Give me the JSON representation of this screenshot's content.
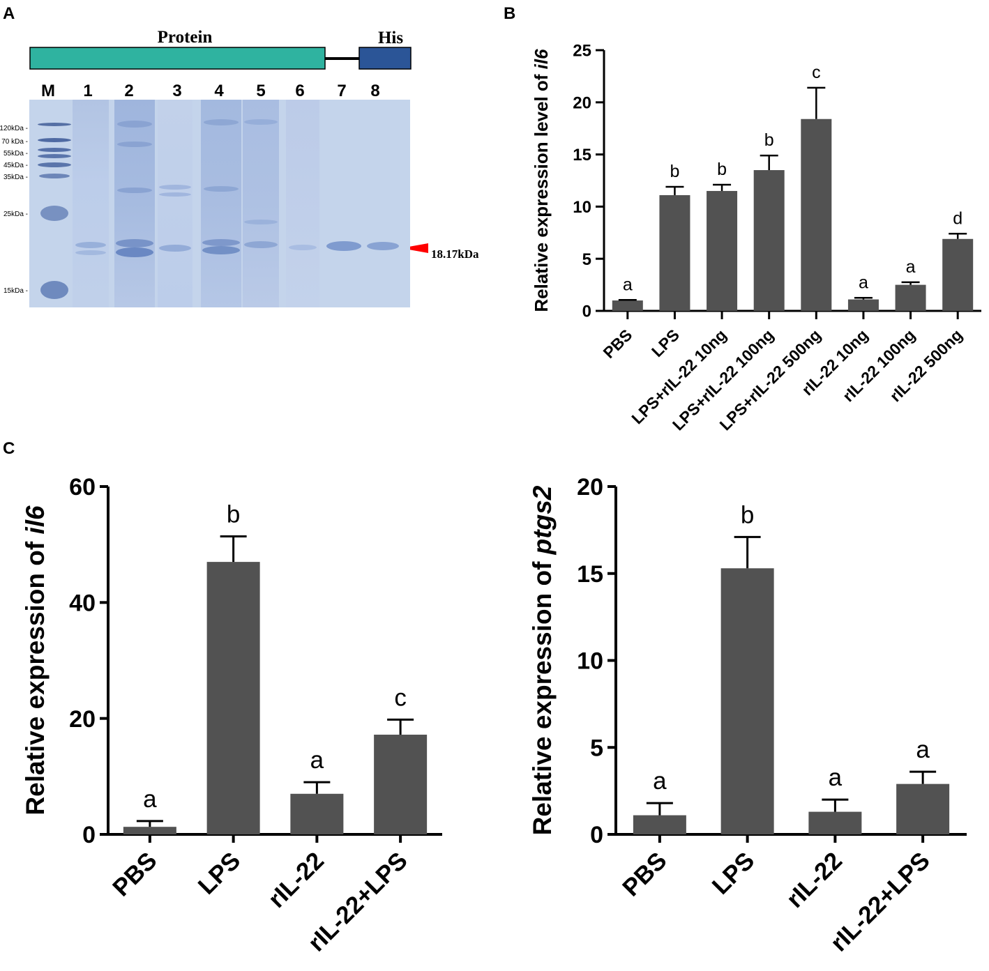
{
  "panels": {
    "A": "A",
    "B": "B",
    "C": "C"
  },
  "gel": {
    "construct": {
      "protein_label": "Protein",
      "tag_label": "His",
      "protein_color": "#2fb3a0",
      "tag_color": "#2b5597"
    },
    "lanes": [
      "M",
      "1",
      "2",
      "3",
      "4",
      "5",
      "6",
      "7",
      "8"
    ],
    "markers": [
      "120kDa",
      "70 kDa",
      "55kDa",
      "45kDa",
      "35kDa",
      "25kDa",
      "15kDa"
    ],
    "arrow_label": "18.17kDa",
    "arrow_color": "#ff0000"
  },
  "chart_data": [
    {
      "type": "bar",
      "panel": "B",
      "title": "",
      "xlabel": "",
      "ylabel_prefix": "Relative expression level of ",
      "ylabel_gene": "il6",
      "ylim": [
        0,
        25
      ],
      "yticks": [
        0,
        5,
        10,
        15,
        20,
        25
      ],
      "categories": [
        "PBS",
        "LPS",
        "LPS+rIL-22 10ng",
        "LPS+rIL-22 100ng",
        "LPS+rIL-22 500ng",
        "rIL-22 10ng",
        "rIL-22 100ng",
        "rIL-22 500ng"
      ],
      "values": [
        1.0,
        11.1,
        11.5,
        13.5,
        18.4,
        1.1,
        2.5,
        6.9
      ],
      "errors": [
        0.05,
        0.8,
        0.6,
        1.4,
        3.0,
        0.15,
        0.25,
        0.5
      ],
      "letters": [
        "a",
        "b",
        "b",
        "b",
        "c",
        "a",
        "a",
        "d"
      ],
      "bar_color": "#525252"
    },
    {
      "type": "bar",
      "panel": "C-left",
      "title": "",
      "xlabel": "",
      "ylabel_prefix": "Relative expression of ",
      "ylabel_gene": "il6",
      "ylim": [
        0,
        60
      ],
      "yticks": [
        0,
        20,
        40,
        60
      ],
      "categories": [
        "PBS",
        "LPS",
        "rIL-22",
        "rIL-22+LPS"
      ],
      "values": [
        1.3,
        47.0,
        7.0,
        17.2
      ],
      "errors": [
        1.0,
        4.4,
        2.0,
        2.6
      ],
      "letters": [
        "a",
        "b",
        "a",
        "c"
      ],
      "bar_color": "#525252"
    },
    {
      "type": "bar",
      "panel": "C-right",
      "title": "",
      "xlabel": "",
      "ylabel_prefix": "Relative expression of ",
      "ylabel_gene": "ptgs2",
      "ylim": [
        0,
        20
      ],
      "yticks": [
        0,
        5,
        10,
        15,
        20
      ],
      "categories": [
        "PBS",
        "LPS",
        "rIL-22",
        "rIL-22+LPS"
      ],
      "values": [
        1.1,
        15.3,
        1.3,
        2.9
      ],
      "errors": [
        0.7,
        1.8,
        0.7,
        0.7
      ],
      "letters": [
        "a",
        "b",
        "a",
        "a"
      ],
      "bar_color": "#525252"
    }
  ]
}
